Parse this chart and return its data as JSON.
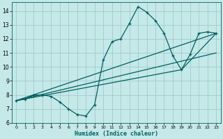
{
  "xlabel": "Humidex (Indice chaleur)",
  "bg_color": "#c5e8e8",
  "grid_color": "#a0cccc",
  "line_color": "#006060",
  "xlim": [
    -0.5,
    23.5
  ],
  "ylim": [
    6.0,
    14.6
  ],
  "xticks": [
    0,
    1,
    2,
    3,
    4,
    5,
    6,
    7,
    8,
    9,
    10,
    11,
    12,
    13,
    14,
    15,
    16,
    17,
    18,
    19,
    20,
    21,
    22,
    23
  ],
  "yticks": [
    6,
    7,
    8,
    9,
    10,
    11,
    12,
    13,
    14
  ],
  "line1_x": [
    0,
    1,
    2,
    3,
    4,
    5,
    6,
    7,
    8,
    9,
    10,
    11,
    12,
    13,
    14,
    15,
    16,
    17,
    18,
    19,
    20,
    21,
    22,
    23
  ],
  "line1_y": [
    7.6,
    7.7,
    8.0,
    8.0,
    7.9,
    7.5,
    7.0,
    6.6,
    6.5,
    7.3,
    10.5,
    11.8,
    12.0,
    13.1,
    14.3,
    13.9,
    13.3,
    12.4,
    10.8,
    9.8,
    10.9,
    12.4,
    12.5,
    12.4
  ],
  "line2_x": [
    0,
    23
  ],
  "line2_y": [
    7.6,
    12.4
  ],
  "line3_x": [
    0,
    19
  ],
  "line3_y": [
    7.6,
    9.8
  ],
  "line4_x": [
    0,
    23
  ],
  "line4_y": [
    7.6,
    11.0
  ],
  "line5_x": [
    19,
    23
  ],
  "line5_y": [
    9.8,
    12.4
  ]
}
